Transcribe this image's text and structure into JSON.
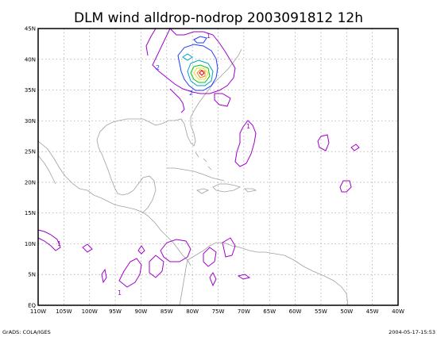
{
  "title": "DLM wind alldrop-nodrop 2003091812 12h",
  "footer_left": "GrADS: COLA/IGES",
  "footer_right": "2004-05-17-15:53",
  "x_ticks": [
    "110W",
    "105W",
    "100W",
    "95W",
    "90W",
    "85W",
    "80W",
    "75W",
    "70W",
    "65W",
    "60W",
    "55W",
    "50W",
    "45W",
    "40W"
  ],
  "y_ticks": [
    "EQ",
    "5N",
    "10N",
    "15N",
    "20N",
    "25N",
    "30N",
    "35N",
    "40N",
    "45N"
  ],
  "contour_labels": [
    "2",
    "2",
    "1",
    "1",
    "1",
    "1"
  ],
  "colors": {
    "coast": "#a0a0a0",
    "grid": "#a0a0a0",
    "contour_1": "#a000c8",
    "contour_2": "#1e3cff",
    "contour_3": "#00a0c8",
    "contour_4": "#00c800",
    "contour_5": "#e6dc32",
    "contour_6": "#f08228",
    "contour_7": "#e60000"
  }
}
